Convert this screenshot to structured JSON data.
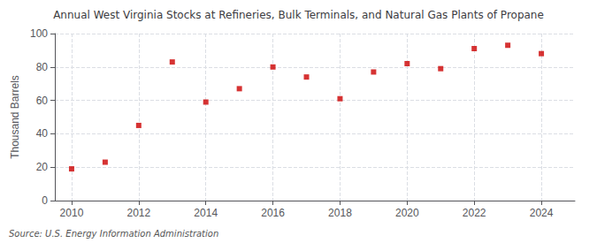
{
  "chart_data": {
    "type": "scatter",
    "title": "Annual West Virginia Stocks at Refineries, Bulk Terminals, and Natural Gas Plants of Propane",
    "ylabel": "Thousand Barrels",
    "annotation": "Source: U.S. Energy Information Administration",
    "x": [
      2010,
      2011,
      2012,
      2013,
      2014,
      2015,
      2016,
      2017,
      2018,
      2019,
      2020,
      2021,
      2022,
      2023,
      2024
    ],
    "values": [
      19,
      23,
      45,
      83,
      59,
      67,
      80,
      74,
      61,
      77,
      82,
      79,
      91,
      93,
      88
    ],
    "color": "#CC0000",
    "marker": "square",
    "xlim": [
      2009.5,
      2025.0
    ],
    "xticks": [
      2010,
      2012,
      2014,
      2016,
      2018,
      2020,
      2022,
      2024
    ],
    "ylim": [
      0,
      100
    ],
    "yticks": [
      0,
      20,
      40,
      60,
      80,
      100
    ],
    "grid": true
  }
}
